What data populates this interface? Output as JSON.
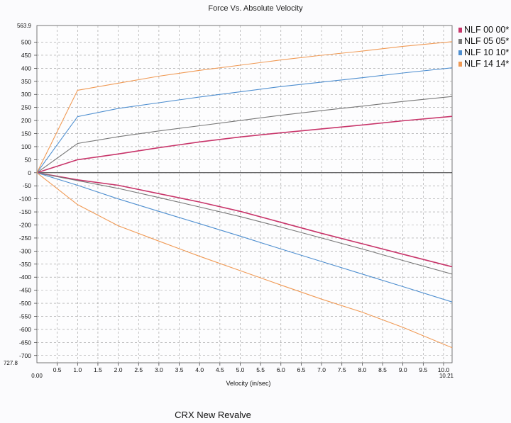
{
  "chart_data": {
    "type": "line",
    "title": "Force Vs. Absolute Velocity",
    "xlabel": "Velocity (in/sec)",
    "ylabel": "",
    "xlim": [
      0,
      10.21
    ],
    "ylim": [
      -727.8,
      563.9
    ],
    "x_min_label": "0.00",
    "x_max_label": "10.21",
    "y_max_label": "563.9",
    "y_min_label": "727.8",
    "xticks": [
      0.5,
      1.0,
      1.5,
      2.0,
      2.5,
      3.0,
      3.5,
      4.0,
      4.5,
      5.0,
      5.5,
      6.0,
      6.5,
      7.0,
      7.5,
      8.0,
      8.5,
      9.0,
      9.5,
      10.0
    ],
    "yticks": [
      500,
      450,
      400,
      350,
      300,
      250,
      200,
      150,
      100,
      50,
      0,
      -50,
      -100,
      -150,
      -200,
      -250,
      -300,
      -350,
      -400,
      -450,
      -500,
      -550,
      -600,
      -650,
      -700
    ],
    "series": [
      {
        "name": "NLF 00 00*",
        "color": "#c8356a",
        "points": [
          [
            0,
            0
          ],
          [
            1,
            50
          ],
          [
            2,
            72
          ],
          [
            3,
            96
          ],
          [
            4,
            118
          ],
          [
            5,
            137
          ],
          [
            6,
            153
          ],
          [
            7,
            168
          ],
          [
            8,
            183
          ],
          [
            9,
            199
          ],
          [
            10.21,
            216
          ]
        ],
        "points_neg": [
          [
            0,
            0
          ],
          [
            1,
            -27
          ],
          [
            2,
            -48
          ],
          [
            3,
            -80
          ],
          [
            4,
            -112
          ],
          [
            5,
            -148
          ],
          [
            6,
            -190
          ],
          [
            7,
            -232
          ],
          [
            8,
            -272
          ],
          [
            9,
            -312
          ],
          [
            10.21,
            -360
          ]
        ]
      },
      {
        "name": "NLF 05 05*",
        "color": "#777777",
        "points": [
          [
            0,
            0
          ],
          [
            1,
            112
          ],
          [
            2,
            138
          ],
          [
            3,
            160
          ],
          [
            4,
            180
          ],
          [
            5,
            200
          ],
          [
            6,
            220
          ],
          [
            7,
            238
          ],
          [
            8,
            255
          ],
          [
            9,
            273
          ],
          [
            10.21,
            292
          ]
        ],
        "points_neg": [
          [
            0,
            0
          ],
          [
            1,
            -30
          ],
          [
            2,
            -60
          ],
          [
            3,
            -95
          ],
          [
            4,
            -131
          ],
          [
            5,
            -168
          ],
          [
            6,
            -208
          ],
          [
            7,
            -250
          ],
          [
            8,
            -292
          ],
          [
            9,
            -336
          ],
          [
            10.21,
            -388
          ]
        ]
      },
      {
        "name": "NLF 10 10*",
        "color": "#4f8fd0",
        "points": [
          [
            0,
            0
          ],
          [
            1,
            215
          ],
          [
            2,
            246
          ],
          [
            3,
            268
          ],
          [
            4,
            290
          ],
          [
            5,
            310
          ],
          [
            6,
            330
          ],
          [
            7,
            347
          ],
          [
            8,
            364
          ],
          [
            9,
            382
          ],
          [
            10.21,
            402
          ]
        ],
        "points_neg": [
          [
            0,
            0
          ],
          [
            1,
            -48
          ],
          [
            2,
            -100
          ],
          [
            3,
            -148
          ],
          [
            4,
            -195
          ],
          [
            5,
            -243
          ],
          [
            6,
            -292
          ],
          [
            7,
            -340
          ],
          [
            8,
            -388
          ],
          [
            9,
            -436
          ],
          [
            10.21,
            -495
          ]
        ]
      },
      {
        "name": "NLF 14 14*",
        "color": "#f09a55",
        "points": [
          [
            0,
            0
          ],
          [
            1,
            316
          ],
          [
            2,
            343
          ],
          [
            3,
            370
          ],
          [
            4,
            392
          ],
          [
            5,
            412
          ],
          [
            6,
            432
          ],
          [
            7,
            450
          ],
          [
            8,
            466
          ],
          [
            9,
            484
          ],
          [
            10.21,
            502
          ]
        ],
        "points_neg": [
          [
            0,
            0
          ],
          [
            1,
            -122
          ],
          [
            2,
            -203
          ],
          [
            3,
            -262
          ],
          [
            4,
            -320
          ],
          [
            5,
            -375
          ],
          [
            6,
            -430
          ],
          [
            7,
            -484
          ],
          [
            8,
            -534
          ],
          [
            9,
            -592
          ],
          [
            10.21,
            -670
          ]
        ]
      }
    ]
  },
  "caption": "CRX  New Revalve"
}
